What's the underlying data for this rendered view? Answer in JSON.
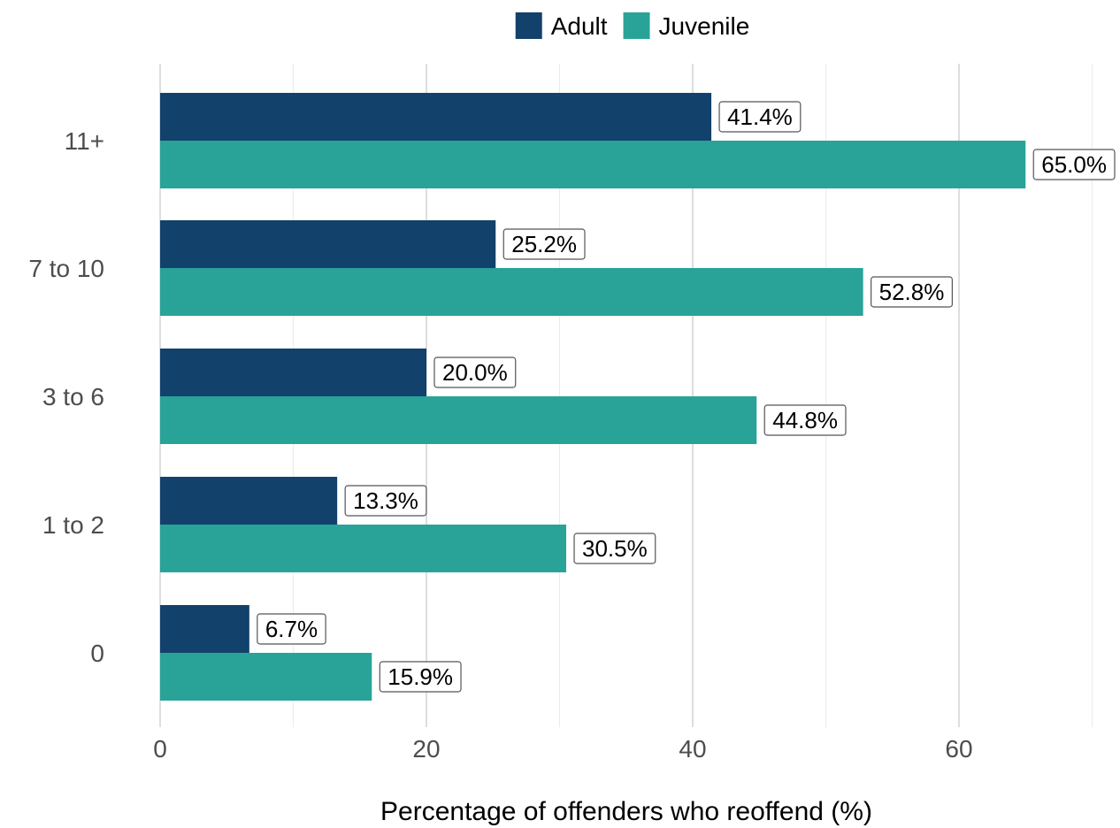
{
  "chart_data": {
    "type": "bar",
    "orientation": "horizontal",
    "categories": [
      "0",
      "1 to 2",
      "3 to 6",
      "7 to 10",
      "11+"
    ],
    "series": [
      {
        "name": "Adult",
        "color": "#12416b",
        "values": [
          6.7,
          13.3,
          20.0,
          25.2,
          41.4
        ],
        "labels": [
          "6.7%",
          "13.3%",
          "20.0%",
          "25.2%",
          "41.4%"
        ]
      },
      {
        "name": "Juvenile",
        "color": "#29a398",
        "values": [
          15.9,
          30.5,
          44.8,
          52.8,
          65.0
        ],
        "labels": [
          "15.9%",
          "30.5%",
          "44.8%",
          "52.8%",
          "65.0%"
        ]
      }
    ],
    "xlabel": "Percentage of offenders who reoffend (%)",
    "ylabel": "",
    "xlim": [
      0,
      70
    ],
    "x_ticks": [
      0,
      20,
      40,
      60
    ],
    "x_tick_labels": [
      "0",
      "20",
      "40",
      "60"
    ],
    "grid": true,
    "legend_position": "top"
  }
}
